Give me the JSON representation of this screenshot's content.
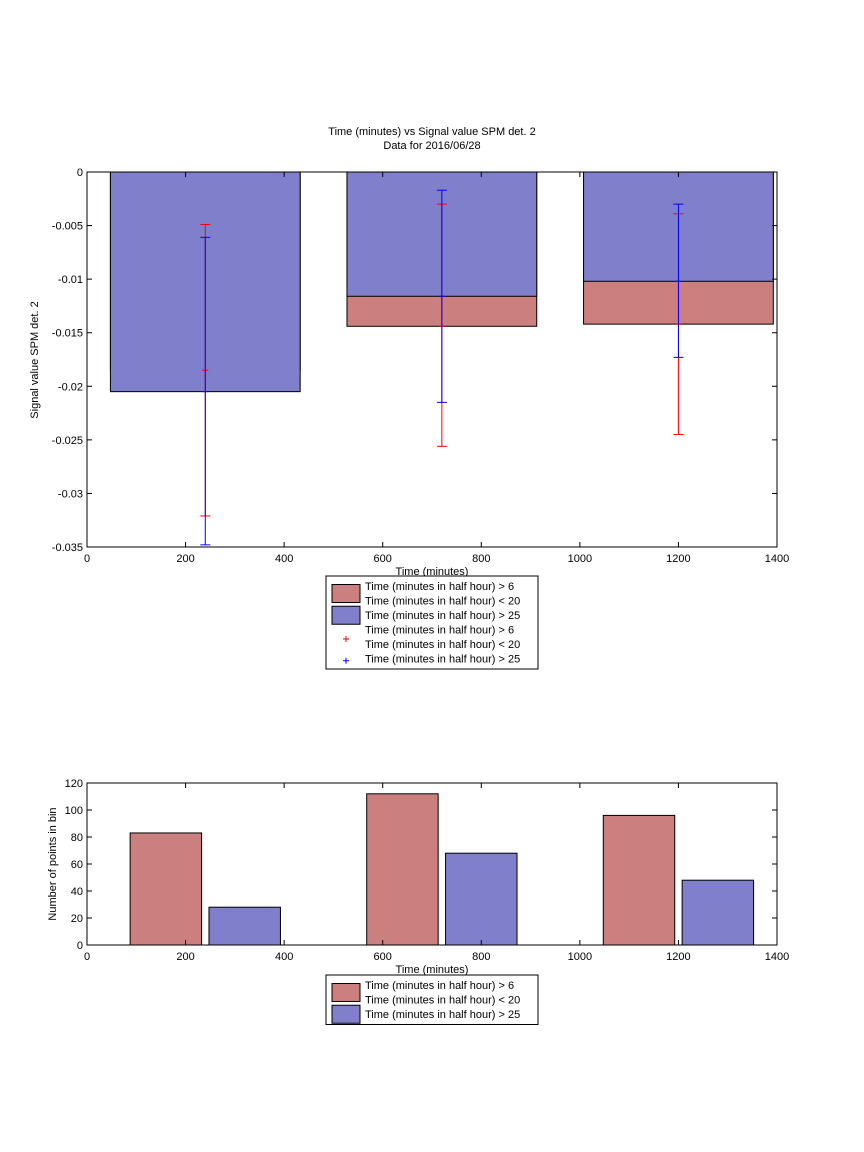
{
  "colors": {
    "red_bar": "#cc7f7f",
    "blue_bar": "#7f7fcc",
    "red_err": "#ff0000",
    "blue_err": "#0000ff"
  },
  "chart_data": [
    {
      "type": "bar",
      "title": "Time (minutes) vs Signal value SPM det. 2",
      "subtitle": "Data for 2016/06/28",
      "xlabel": "Time (minutes)",
      "ylabel": "Signal value SPM det. 2",
      "xlim": [
        0,
        1400
      ],
      "ylim": [
        -0.035,
        0
      ],
      "xticks": [
        "0",
        "200",
        "400",
        "600",
        "800",
        "1000",
        "1200",
        "1400"
      ],
      "xtick_values": [
        0,
        200,
        400,
        600,
        800,
        1000,
        1200,
        1400
      ],
      "yticks": [
        "0",
        "-0.005",
        "-0.01",
        "-0.015",
        "-0.02",
        "-0.025",
        "-0.03",
        "-0.035"
      ],
      "ytick_values": [
        0,
        -0.005,
        -0.01,
        -0.015,
        -0.02,
        -0.025,
        -0.03,
        -0.035
      ],
      "bar_centers": [
        240,
        720,
        1200
      ],
      "bar_width": 385,
      "series": [
        {
          "key": "red",
          "values": [
            -0.0185,
            -0.0144,
            -0.0142
          ],
          "err_low": [
            -0.0321,
            -0.0256,
            -0.0245
          ],
          "err_high": [
            -0.0049,
            -0.003,
            -0.0039
          ]
        },
        {
          "key": "blue",
          "values": [
            -0.0205,
            -0.0116,
            -0.0102
          ],
          "err_low": [
            -0.0348,
            -0.0215,
            -0.0173
          ],
          "err_high": [
            -0.0061,
            -0.0017,
            -0.003
          ]
        }
      ],
      "legend": {
        "placement": "below",
        "entries": [
          {
            "kind": "patch",
            "color": "red",
            "lines": [
              "Time (minutes in half hour) > 6",
              "Time (minutes in half hour) < 20"
            ]
          },
          {
            "kind": "patch",
            "color": "blue",
            "lines": [
              "Time (minutes in half hour) > 25"
            ]
          },
          {
            "kind": "marker",
            "color": "red",
            "lines": [
              "Time (minutes in half hour) > 6",
              "Time (minutes in half hour) < 20"
            ]
          },
          {
            "kind": "marker",
            "color": "blue",
            "lines": [
              "Time (minutes in half hour) > 25"
            ]
          }
        ]
      }
    },
    {
      "type": "bar",
      "title": "",
      "xlabel": "Time (minutes)",
      "ylabel": "Number of points in bin",
      "xlim": [
        0,
        1400
      ],
      "ylim": [
        0,
        120
      ],
      "xticks": [
        "0",
        "200",
        "400",
        "600",
        "800",
        "1000",
        "1200",
        "1400"
      ],
      "xtick_values": [
        0,
        200,
        400,
        600,
        800,
        1000,
        1200,
        1400
      ],
      "yticks": [
        "0",
        "20",
        "40",
        "60",
        "80",
        "100",
        "120"
      ],
      "ytick_values": [
        0,
        20,
        40,
        60,
        80,
        100,
        120
      ],
      "bar_width": 145,
      "series": [
        {
          "key": "red",
          "centers": [
            160,
            640,
            1120
          ],
          "values": [
            83,
            112,
            96
          ]
        },
        {
          "key": "blue",
          "centers": [
            320,
            800,
            1280
          ],
          "values": [
            28,
            68,
            48
          ]
        }
      ],
      "legend": {
        "placement": "below",
        "entries": [
          {
            "kind": "patch",
            "color": "red",
            "lines": [
              "Time (minutes in half hour) > 6",
              "Time (minutes in half hour) < 20"
            ]
          },
          {
            "kind": "patch",
            "color": "blue",
            "lines": [
              "Time (minutes in half hour) > 25"
            ]
          }
        ]
      }
    }
  ]
}
